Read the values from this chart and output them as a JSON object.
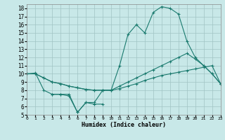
{
  "xlabel": "Humidex (Indice chaleur)",
  "bg_color": "#c8e8e8",
  "grid_color": "#a0c4c4",
  "line_color": "#1a7a6e",
  "xlim": [
    0,
    23
  ],
  "ylim": [
    5,
    18.5
  ],
  "xticks": [
    0,
    1,
    2,
    3,
    4,
    5,
    6,
    7,
    8,
    9,
    10,
    11,
    12,
    13,
    14,
    15,
    16,
    17,
    18,
    19,
    20,
    21,
    22,
    23
  ],
  "yticks": [
    5,
    6,
    7,
    8,
    9,
    10,
    11,
    12,
    13,
    14,
    15,
    16,
    17,
    18
  ],
  "curve1_x": [
    0,
    1,
    2,
    3,
    4,
    5,
    6,
    7,
    8,
    9,
    10,
    11,
    12,
    13,
    14,
    15,
    16,
    17,
    18,
    19,
    20,
    21,
    22,
    23
  ],
  "curve1_y": [
    10.0,
    10.1,
    8.0,
    7.5,
    7.5,
    7.5,
    5.3,
    6.5,
    6.5,
    8.0,
    8.0,
    11.0,
    14.8,
    16.0,
    15.0,
    17.5,
    18.2,
    18.0,
    17.3,
    14.0,
    12.0,
    11.0,
    10.0,
    8.8
  ],
  "curve2_x": [
    0,
    1,
    2,
    3,
    4,
    5,
    6,
    7,
    8,
    9,
    10,
    11,
    12,
    13,
    14,
    15,
    16,
    17,
    18,
    19,
    20,
    21,
    22,
    23
  ],
  "curve2_y": [
    10.0,
    10.0,
    9.5,
    9.0,
    8.8,
    8.5,
    8.3,
    8.1,
    8.0,
    8.0,
    8.0,
    8.5,
    9.0,
    9.5,
    10.0,
    10.5,
    11.0,
    11.5,
    12.0,
    12.5,
    11.8,
    11.0,
    10.0,
    8.8
  ],
  "curve3_x": [
    0,
    1,
    2,
    3,
    4,
    5,
    6,
    7,
    8,
    9,
    10,
    11,
    12,
    13,
    14,
    15,
    16,
    17,
    18,
    19,
    20,
    21,
    22,
    23
  ],
  "curve3_y": [
    10.0,
    10.0,
    9.5,
    9.0,
    8.8,
    8.5,
    8.3,
    8.1,
    8.0,
    8.0,
    8.0,
    8.2,
    8.5,
    8.8,
    9.2,
    9.5,
    9.8,
    10.0,
    10.2,
    10.4,
    10.6,
    10.8,
    11.0,
    8.8
  ],
  "curve4_x": [
    3,
    4,
    5,
    6,
    7,
    8,
    9
  ],
  "curve4_y": [
    7.5,
    7.5,
    7.3,
    5.3,
    6.5,
    6.3,
    6.3
  ]
}
